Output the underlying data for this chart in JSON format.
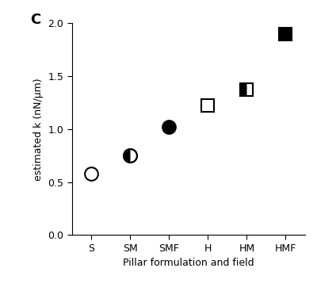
{
  "categories": [
    "S",
    "SM",
    "SMF",
    "H",
    "HM",
    "HMF"
  ],
  "open_circle_values": [
    0.58,
    null,
    null,
    null,
    null,
    null
  ],
  "half_circle_values": [
    null,
    0.75,
    null,
    null,
    null,
    null
  ],
  "filled_circle_values": [
    null,
    null,
    1.02,
    null,
    null,
    null
  ],
  "open_square_values": [
    null,
    null,
    null,
    1.22,
    null,
    null
  ],
  "half_square_values": [
    null,
    null,
    null,
    null,
    1.37,
    null
  ],
  "filled_square_values": [
    null,
    null,
    null,
    null,
    null,
    1.9
  ],
  "ylabel": "estimated k (nN/μm)",
  "xlabel": "Pillar formulation and field",
  "panel_label": "C",
  "ylim": [
    0.0,
    2.0
  ],
  "yticks": [
    0.0,
    0.5,
    1.0,
    1.5,
    2.0
  ],
  "marker_size": 12,
  "bg_color": "#ffffff",
  "fg_color": "#000000"
}
